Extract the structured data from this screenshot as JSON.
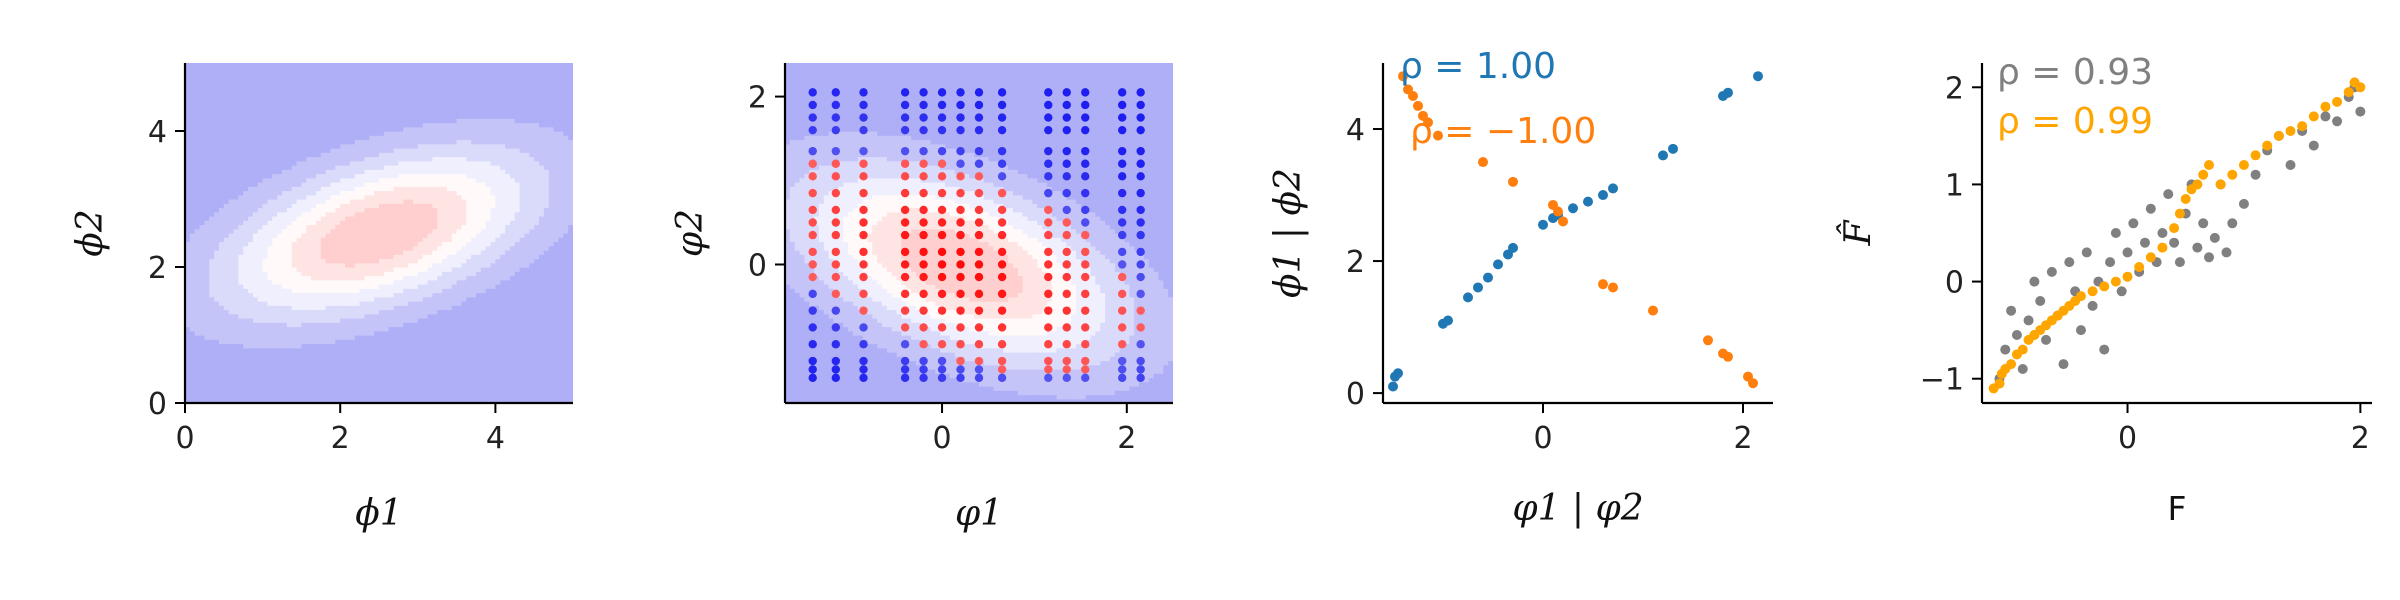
{
  "palette": {
    "blue_dots": "#1f77b4",
    "orange_dots": "#ff7f0e",
    "gray_dots": "#808080",
    "gold_dots": "#ffa500",
    "cool": "#a3a3f5",
    "warm": "#ff9e9e"
  },
  "chart_data": [
    {
      "type": "heatmap",
      "title": "",
      "xlabel": "ϕ1",
      "ylabel": "ϕ2",
      "xlim": [
        0,
        5
      ],
      "ylim": [
        0,
        5
      ],
      "xticks": [
        "0",
        "2",
        "4"
      ],
      "yticks": [
        "0",
        "2",
        "4"
      ],
      "density": {
        "center": [
          2.5,
          2.5
        ],
        "sd": [
          1.4,
          0.85
        ],
        "rho": 0.5
      },
      "levels": 7
    },
    {
      "type": "heatmap",
      "title": "",
      "xlabel": "φ1",
      "ylabel": "φ2",
      "xlim": [
        -1.7,
        2.5
      ],
      "ylim": [
        -1.65,
        2.4
      ],
      "xticks": [
        "0",
        "2"
      ],
      "yticks": [
        "0",
        "2"
      ],
      "density": {
        "center": [
          0.2,
          0.0
        ],
        "sd": [
          1.2,
          0.8
        ],
        "rho": -0.5
      },
      "levels": 7,
      "grid_x": [
        -1.4,
        -1.15,
        -0.85,
        -0.4,
        -0.2,
        0.0,
        0.2,
        0.4,
        0.65,
        1.15,
        1.35,
        1.55,
        1.95,
        2.15
      ],
      "grid_y": [
        2.05,
        1.9,
        1.75,
        1.6,
        1.35,
        1.2,
        1.05,
        0.85,
        0.65,
        0.5,
        0.35,
        0.15,
        0.0,
        -0.15,
        -0.35,
        -0.55,
        -0.75,
        -0.95,
        -1.15,
        -1.25,
        -1.35
      ]
    },
    {
      "type": "scatter",
      "title": "",
      "xlabel": "φ1 | φ2",
      "ylabel": "ϕ1 | ϕ2",
      "xlim": [
        -1.6,
        2.3
      ],
      "ylim": [
        -0.15,
        5.0
      ],
      "xticks": [
        "0",
        "2"
      ],
      "yticks": [
        "0",
        "2",
        "4"
      ],
      "annotations": [
        "ρ = 1.00",
        "ρ = −1.00"
      ],
      "series": [
        {
          "name": "ρ = 1.00",
          "color": "#1f77b4",
          "points": [
            [
              -1.5,
              0.1
            ],
            [
              -1.48,
              0.25
            ],
            [
              -1.45,
              0.3
            ],
            [
              -1.0,
              1.05
            ],
            [
              -0.95,
              1.1
            ],
            [
              -0.75,
              1.45
            ],
            [
              -0.65,
              1.6
            ],
            [
              -0.55,
              1.75
            ],
            [
              -0.45,
              1.95
            ],
            [
              -0.35,
              2.1
            ],
            [
              -0.3,
              2.2
            ],
            [
              0.0,
              2.55
            ],
            [
              0.1,
              2.65
            ],
            [
              0.15,
              2.7
            ],
            [
              0.3,
              2.8
            ],
            [
              0.45,
              2.9
            ],
            [
              0.6,
              3.0
            ],
            [
              0.7,
              3.1
            ],
            [
              1.2,
              3.6
            ],
            [
              1.3,
              3.7
            ],
            [
              1.8,
              4.5
            ],
            [
              1.85,
              4.55
            ],
            [
              2.15,
              4.8
            ]
          ]
        },
        {
          "name": "ρ = −1.00",
          "color": "#ff7f0e",
          "points": [
            [
              -1.4,
              4.8
            ],
            [
              -1.35,
              4.6
            ],
            [
              -1.3,
              4.5
            ],
            [
              -1.25,
              4.35
            ],
            [
              -1.2,
              4.2
            ],
            [
              -1.15,
              4.1
            ],
            [
              -1.05,
              3.9
            ],
            [
              -0.6,
              3.5
            ],
            [
              -0.3,
              3.2
            ],
            [
              0.1,
              2.85
            ],
            [
              0.15,
              2.75
            ],
            [
              0.2,
              2.6
            ],
            [
              0.6,
              1.65
            ],
            [
              0.7,
              1.6
            ],
            [
              1.1,
              1.25
            ],
            [
              1.65,
              0.8
            ],
            [
              1.8,
              0.6
            ],
            [
              1.85,
              0.55
            ],
            [
              2.05,
              0.25
            ],
            [
              2.1,
              0.15
            ]
          ]
        }
      ]
    },
    {
      "type": "scatter",
      "title": "",
      "xlabel": "F",
      "ylabel": "F̂",
      "xlim": [
        -1.25,
        2.1
      ],
      "ylim": [
        -1.25,
        2.25
      ],
      "xticks": [
        "0",
        "2"
      ],
      "yticks": [
        "−1",
        "0",
        "1",
        "2"
      ],
      "annotations": [
        "ρ = 0.93",
        "ρ = 0.99"
      ],
      "series": [
        {
          "name": "ρ = 0.93",
          "color": "#808080",
          "points": [
            [
              -1.1,
              -1.0
            ],
            [
              -1.05,
              -0.7
            ],
            [
              -1.0,
              -0.3
            ],
            [
              -0.95,
              -0.55
            ],
            [
              -0.9,
              -0.9
            ],
            [
              -0.85,
              -0.4
            ],
            [
              -0.8,
              0.0
            ],
            [
              -0.75,
              -0.2
            ],
            [
              -0.7,
              -0.6
            ],
            [
              -0.65,
              0.1
            ],
            [
              -0.6,
              -0.35
            ],
            [
              -0.55,
              -0.85
            ],
            [
              -0.5,
              0.2
            ],
            [
              -0.45,
              -0.1
            ],
            [
              -0.4,
              -0.5
            ],
            [
              -0.35,
              0.3
            ],
            [
              -0.3,
              -0.25
            ],
            [
              -0.25,
              0.0
            ],
            [
              -0.2,
              -0.7
            ],
            [
              -0.15,
              0.2
            ],
            [
              -0.1,
              0.5
            ],
            [
              -0.05,
              -0.1
            ],
            [
              0.0,
              0.3
            ],
            [
              0.05,
              0.6
            ],
            [
              0.1,
              0.1
            ],
            [
              0.15,
              0.4
            ],
            [
              0.2,
              0.75
            ],
            [
              0.25,
              0.2
            ],
            [
              0.3,
              0.5
            ],
            [
              0.35,
              0.9
            ],
            [
              0.4,
              0.4
            ],
            [
              0.45,
              0.2
            ],
            [
              0.5,
              0.7
            ],
            [
              0.55,
              1.0
            ],
            [
              0.6,
              0.35
            ],
            [
              0.65,
              0.6
            ],
            [
              0.7,
              0.25
            ],
            [
              0.75,
              0.45
            ],
            [
              0.8,
              1.0
            ],
            [
              0.85,
              0.3
            ],
            [
              0.9,
              0.6
            ],
            [
              1.0,
              0.8
            ],
            [
              1.1,
              1.1
            ],
            [
              1.2,
              1.35
            ],
            [
              1.3,
              1.5
            ],
            [
              1.4,
              1.2
            ],
            [
              1.5,
              1.55
            ],
            [
              1.6,
              1.4
            ],
            [
              1.7,
              1.7
            ],
            [
              1.8,
              1.65
            ],
            [
              1.9,
              1.9
            ],
            [
              1.95,
              2.0
            ],
            [
              2.0,
              1.75
            ]
          ]
        },
        {
          "name": "ρ = 0.99",
          "color": "#ffa500",
          "points": [
            [
              -1.15,
              -1.1
            ],
            [
              -1.1,
              -1.05
            ],
            [
              -1.08,
              -0.95
            ],
            [
              -1.05,
              -0.9
            ],
            [
              -1.0,
              -0.85
            ],
            [
              -0.95,
              -0.75
            ],
            [
              -0.9,
              -0.7
            ],
            [
              -0.85,
              -0.6
            ],
            [
              -0.8,
              -0.55
            ],
            [
              -0.75,
              -0.5
            ],
            [
              -0.7,
              -0.45
            ],
            [
              -0.65,
              -0.4
            ],
            [
              -0.6,
              -0.35
            ],
            [
              -0.55,
              -0.3
            ],
            [
              -0.5,
              -0.25
            ],
            [
              -0.45,
              -0.2
            ],
            [
              -0.4,
              -0.15
            ],
            [
              -0.3,
              -0.1
            ],
            [
              -0.2,
              -0.05
            ],
            [
              -0.1,
              0.0
            ],
            [
              0.0,
              0.05
            ],
            [
              0.1,
              0.15
            ],
            [
              0.2,
              0.25
            ],
            [
              0.3,
              0.35
            ],
            [
              0.4,
              0.55
            ],
            [
              0.45,
              0.7
            ],
            [
              0.5,
              0.85
            ],
            [
              0.55,
              0.95
            ],
            [
              0.6,
              1.0
            ],
            [
              0.65,
              1.1
            ],
            [
              0.7,
              1.2
            ],
            [
              0.8,
              1.0
            ],
            [
              0.9,
              1.1
            ],
            [
              1.0,
              1.2
            ],
            [
              1.1,
              1.3
            ],
            [
              1.2,
              1.4
            ],
            [
              1.3,
              1.5
            ],
            [
              1.4,
              1.55
            ],
            [
              1.5,
              1.6
            ],
            [
              1.6,
              1.7
            ],
            [
              1.7,
              1.8
            ],
            [
              1.8,
              1.85
            ],
            [
              1.9,
              1.95
            ],
            [
              1.95,
              2.05
            ],
            [
              2.0,
              2.0
            ]
          ]
        }
      ]
    }
  ]
}
